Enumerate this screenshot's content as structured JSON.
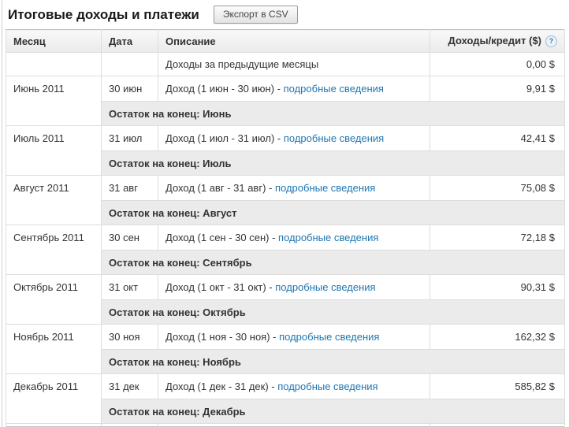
{
  "page": {
    "title": "Итоговые доходы и платежи",
    "export_button": "Экспорт в CSV"
  },
  "colors": {
    "link_blue": "#2077b2",
    "subtotal_gray": "#ebebeb",
    "header_gray": "#f0f0f0"
  },
  "table": {
    "headers": {
      "month": "Месяц",
      "date": "Дата",
      "description": "Описание",
      "earnings": "Доходы/кредит ($)"
    },
    "help_icon": "?",
    "previous_row": {
      "description": "Доходы за предыдущие месяцы",
      "amount": "0,00 $"
    },
    "months": [
      {
        "month": "Июнь 2011",
        "date": "30 июн",
        "description": "Доход (1 июн - 30 июн) - ",
        "link": "подробные сведения",
        "amount": "9,91 $",
        "subtotal": "Остаток на конец: Июнь"
      },
      {
        "month": "Июль 2011",
        "date": "31 июл",
        "description": "Доход (1 июл - 31 июл) - ",
        "link": "подробные сведения",
        "amount": "42,41 $",
        "subtotal": "Остаток на конец: Июль"
      },
      {
        "month": "Август 2011",
        "date": "31 авг",
        "description": "Доход (1 авг - 31 авг) - ",
        "link": "подробные сведения",
        "amount": "75,08 $",
        "subtotal": "Остаток на конец: Август"
      },
      {
        "month": "Сентябрь 2011",
        "date": "30 сен",
        "description": "Доход (1 сен - 30 сен) - ",
        "link": "подробные сведения",
        "amount": "72,18 $",
        "subtotal": "Остаток на конец: Сентябрь"
      },
      {
        "month": "Октябрь 2011",
        "date": "31 окт",
        "description": "Доход (1 окт - 31 окт) - ",
        "link": "подробные сведения",
        "amount": "90,31 $",
        "subtotal": "Остаток на конец: Октябрь"
      },
      {
        "month": "Ноябрь 2011",
        "date": "30 ноя",
        "description": "Доход (1 ноя - 30 ноя) - ",
        "link": "подробные сведения",
        "amount": "162,32 $",
        "subtotal": "Остаток на конец: Ноябрь"
      },
      {
        "month": "Декабрь 2011",
        "date": "31 дек",
        "description": "Доход (1 дек - 31 дек) - ",
        "link": "подробные сведения",
        "amount": "585,82 $",
        "subtotal": "Остаток на конец: Декабрь"
      }
    ]
  }
}
